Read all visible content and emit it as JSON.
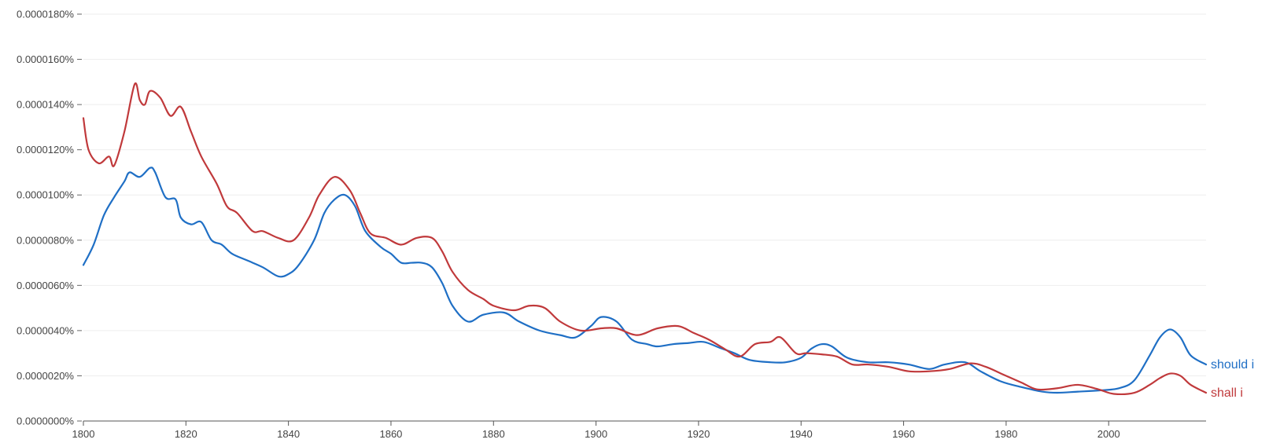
{
  "chart_data": {
    "type": "line",
    "title": "",
    "xlabel": "",
    "ylabel": "",
    "xlim": [
      1800,
      2019
    ],
    "ylim": [
      0,
      1.8e-05
    ],
    "grid": true,
    "legend": "line-end labels at right",
    "x_ticks": [
      1800,
      1820,
      1840,
      1860,
      1880,
      1900,
      1920,
      1940,
      1960,
      1980,
      2000
    ],
    "x_tick_labels": [
      "1800",
      "1820",
      "1840",
      "1860",
      "1880",
      "1900",
      "1920",
      "1940",
      "1960",
      "1980",
      "2000"
    ],
    "y_ticks": [
      0,
      2e-06,
      4e-06,
      6e-06,
      8e-06,
      1e-05,
      1.2e-05,
      1.4e-05,
      1.6e-05,
      1.8e-05
    ],
    "y_tick_labels": [
      "0.0000000%",
      "0.0000020%",
      "0.0000040%",
      "0.0000060%",
      "0.0000080%",
      "0.0000100%",
      "0.0000120%",
      "0.0000140%",
      "0.0000160%",
      "0.0000180%"
    ],
    "series": [
      {
        "name": "should i",
        "color": "#1f6fc5",
        "points": [
          [
            1800,
            6.9e-06
          ],
          [
            1802,
            7.8e-06
          ],
          [
            1804,
            9.1e-06
          ],
          [
            1806,
            9.9e-06
          ],
          [
            1808,
            1.06e-05
          ],
          [
            1809,
            1.1e-05
          ],
          [
            1811,
            1.08e-05
          ],
          [
            1813,
            1.12e-05
          ],
          [
            1814,
            1.1e-05
          ],
          [
            1816,
            9.9e-06
          ],
          [
            1818,
            9.8e-06
          ],
          [
            1819,
            9e-06
          ],
          [
            1821,
            8.7e-06
          ],
          [
            1823,
            8.8e-06
          ],
          [
            1825,
            8e-06
          ],
          [
            1827,
            7.8e-06
          ],
          [
            1829,
            7.4e-06
          ],
          [
            1832,
            7.1e-06
          ],
          [
            1835,
            6.8e-06
          ],
          [
            1838,
            6.4e-06
          ],
          [
            1840,
            6.5e-06
          ],
          [
            1842,
            6.9e-06
          ],
          [
            1845,
            8e-06
          ],
          [
            1847,
            9.2e-06
          ],
          [
            1849,
            9.8e-06
          ],
          [
            1851,
            1e-05
          ],
          [
            1853,
            9.5e-06
          ],
          [
            1855,
            8.4e-06
          ],
          [
            1858,
            7.7e-06
          ],
          [
            1860,
            7.4e-06
          ],
          [
            1862,
            7e-06
          ],
          [
            1864,
            7e-06
          ],
          [
            1866,
            7e-06
          ],
          [
            1868,
            6.8e-06
          ],
          [
            1870,
            6.1e-06
          ],
          [
            1872,
            5.1e-06
          ],
          [
            1875,
            4.4e-06
          ],
          [
            1878,
            4.7e-06
          ],
          [
            1882,
            4.8e-06
          ],
          [
            1885,
            4.4e-06
          ],
          [
            1889,
            4e-06
          ],
          [
            1893,
            3.8e-06
          ],
          [
            1896,
            3.7e-06
          ],
          [
            1899,
            4.2e-06
          ],
          [
            1901,
            4.6e-06
          ],
          [
            1904,
            4.4e-06
          ],
          [
            1907,
            3.6e-06
          ],
          [
            1910,
            3.4e-06
          ],
          [
            1912,
            3.3e-06
          ],
          [
            1915,
            3.4e-06
          ],
          [
            1918,
            3.45e-06
          ],
          [
            1921,
            3.5e-06
          ],
          [
            1924,
            3.25e-06
          ],
          [
            1927,
            3e-06
          ],
          [
            1930,
            2.7e-06
          ],
          [
            1934,
            2.6e-06
          ],
          [
            1937,
            2.6e-06
          ],
          [
            1940,
            2.8e-06
          ],
          [
            1942,
            3.2e-06
          ],
          [
            1944,
            3.4e-06
          ],
          [
            1946,
            3.3e-06
          ],
          [
            1949,
            2.8e-06
          ],
          [
            1953,
            2.6e-06
          ],
          [
            1957,
            2.6e-06
          ],
          [
            1961,
            2.5e-06
          ],
          [
            1965,
            2.3e-06
          ],
          [
            1968,
            2.5e-06
          ],
          [
            1972,
            2.6e-06
          ],
          [
            1975,
            2.2e-06
          ],
          [
            1979,
            1.75e-06
          ],
          [
            1983,
            1.5e-06
          ],
          [
            1987,
            1.3e-06
          ],
          [
            1990,
            1.25e-06
          ],
          [
            1994,
            1.3e-06
          ],
          [
            1998,
            1.35e-06
          ],
          [
            2002,
            1.45e-06
          ],
          [
            2005,
            1.8e-06
          ],
          [
            2008,
            2.9e-06
          ],
          [
            2010,
            3.7e-06
          ],
          [
            2012,
            4.05e-06
          ],
          [
            2014,
            3.7e-06
          ],
          [
            2016,
            2.9e-06
          ],
          [
            2019,
            2.5e-06
          ]
        ]
      },
      {
        "name": "shall i",
        "color": "#c0393b",
        "points": [
          [
            1800,
            1.34e-05
          ],
          [
            1801,
            1.2e-05
          ],
          [
            1803,
            1.14e-05
          ],
          [
            1805,
            1.17e-05
          ],
          [
            1806,
            1.13e-05
          ],
          [
            1808,
            1.28e-05
          ],
          [
            1810,
            1.49e-05
          ],
          [
            1811,
            1.42e-05
          ],
          [
            1812,
            1.4e-05
          ],
          [
            1813,
            1.46e-05
          ],
          [
            1815,
            1.43e-05
          ],
          [
            1817,
            1.35e-05
          ],
          [
            1819,
            1.39e-05
          ],
          [
            1821,
            1.28e-05
          ],
          [
            1823,
            1.17e-05
          ],
          [
            1826,
            1.05e-05
          ],
          [
            1828,
            9.5e-06
          ],
          [
            1830,
            9.2e-06
          ],
          [
            1833,
            8.4e-06
          ],
          [
            1835,
            8.4e-06
          ],
          [
            1838,
            8.1e-06
          ],
          [
            1841,
            8e-06
          ],
          [
            1844,
            9e-06
          ],
          [
            1846,
            1e-05
          ],
          [
            1849,
            1.08e-05
          ],
          [
            1852,
            1.02e-05
          ],
          [
            1854,
            9.2e-06
          ],
          [
            1856,
            8.3e-06
          ],
          [
            1859,
            8.1e-06
          ],
          [
            1862,
            7.8e-06
          ],
          [
            1865,
            8.1e-06
          ],
          [
            1868,
            8.1e-06
          ],
          [
            1870,
            7.5e-06
          ],
          [
            1872,
            6.6e-06
          ],
          [
            1875,
            5.8e-06
          ],
          [
            1878,
            5.4e-06
          ],
          [
            1880,
            5.1e-06
          ],
          [
            1884,
            4.9e-06
          ],
          [
            1887,
            5.1e-06
          ],
          [
            1890,
            5e-06
          ],
          [
            1893,
            4.4e-06
          ],
          [
            1897,
            4e-06
          ],
          [
            1901,
            4.1e-06
          ],
          [
            1904,
            4.1e-06
          ],
          [
            1908,
            3.8e-06
          ],
          [
            1912,
            4.1e-06
          ],
          [
            1916,
            4.2e-06
          ],
          [
            1919,
            3.9e-06
          ],
          [
            1922,
            3.6e-06
          ],
          [
            1925,
            3.2e-06
          ],
          [
            1928,
            2.85e-06
          ],
          [
            1931,
            3.4e-06
          ],
          [
            1934,
            3.5e-06
          ],
          [
            1936,
            3.7e-06
          ],
          [
            1939,
            3e-06
          ],
          [
            1941,
            3e-06
          ],
          [
            1944,
            2.95e-06
          ],
          [
            1947,
            2.85e-06
          ],
          [
            1950,
            2.5e-06
          ],
          [
            1953,
            2.5e-06
          ],
          [
            1957,
            2.4e-06
          ],
          [
            1961,
            2.2e-06
          ],
          [
            1965,
            2.2e-06
          ],
          [
            1969,
            2.3e-06
          ],
          [
            1973,
            2.55e-06
          ],
          [
            1976,
            2.4e-06
          ],
          [
            1979,
            2.1e-06
          ],
          [
            1983,
            1.7e-06
          ],
          [
            1986,
            1.4e-06
          ],
          [
            1990,
            1.45e-06
          ],
          [
            1994,
            1.6e-06
          ],
          [
            1998,
            1.4e-06
          ],
          [
            2001,
            1.2e-06
          ],
          [
            2005,
            1.25e-06
          ],
          [
            2008,
            1.6e-06
          ],
          [
            2010,
            1.9e-06
          ],
          [
            2012,
            2.1e-06
          ],
          [
            2014,
            2e-06
          ],
          [
            2016,
            1.6e-06
          ],
          [
            2019,
            1.25e-06
          ]
        ]
      }
    ]
  }
}
